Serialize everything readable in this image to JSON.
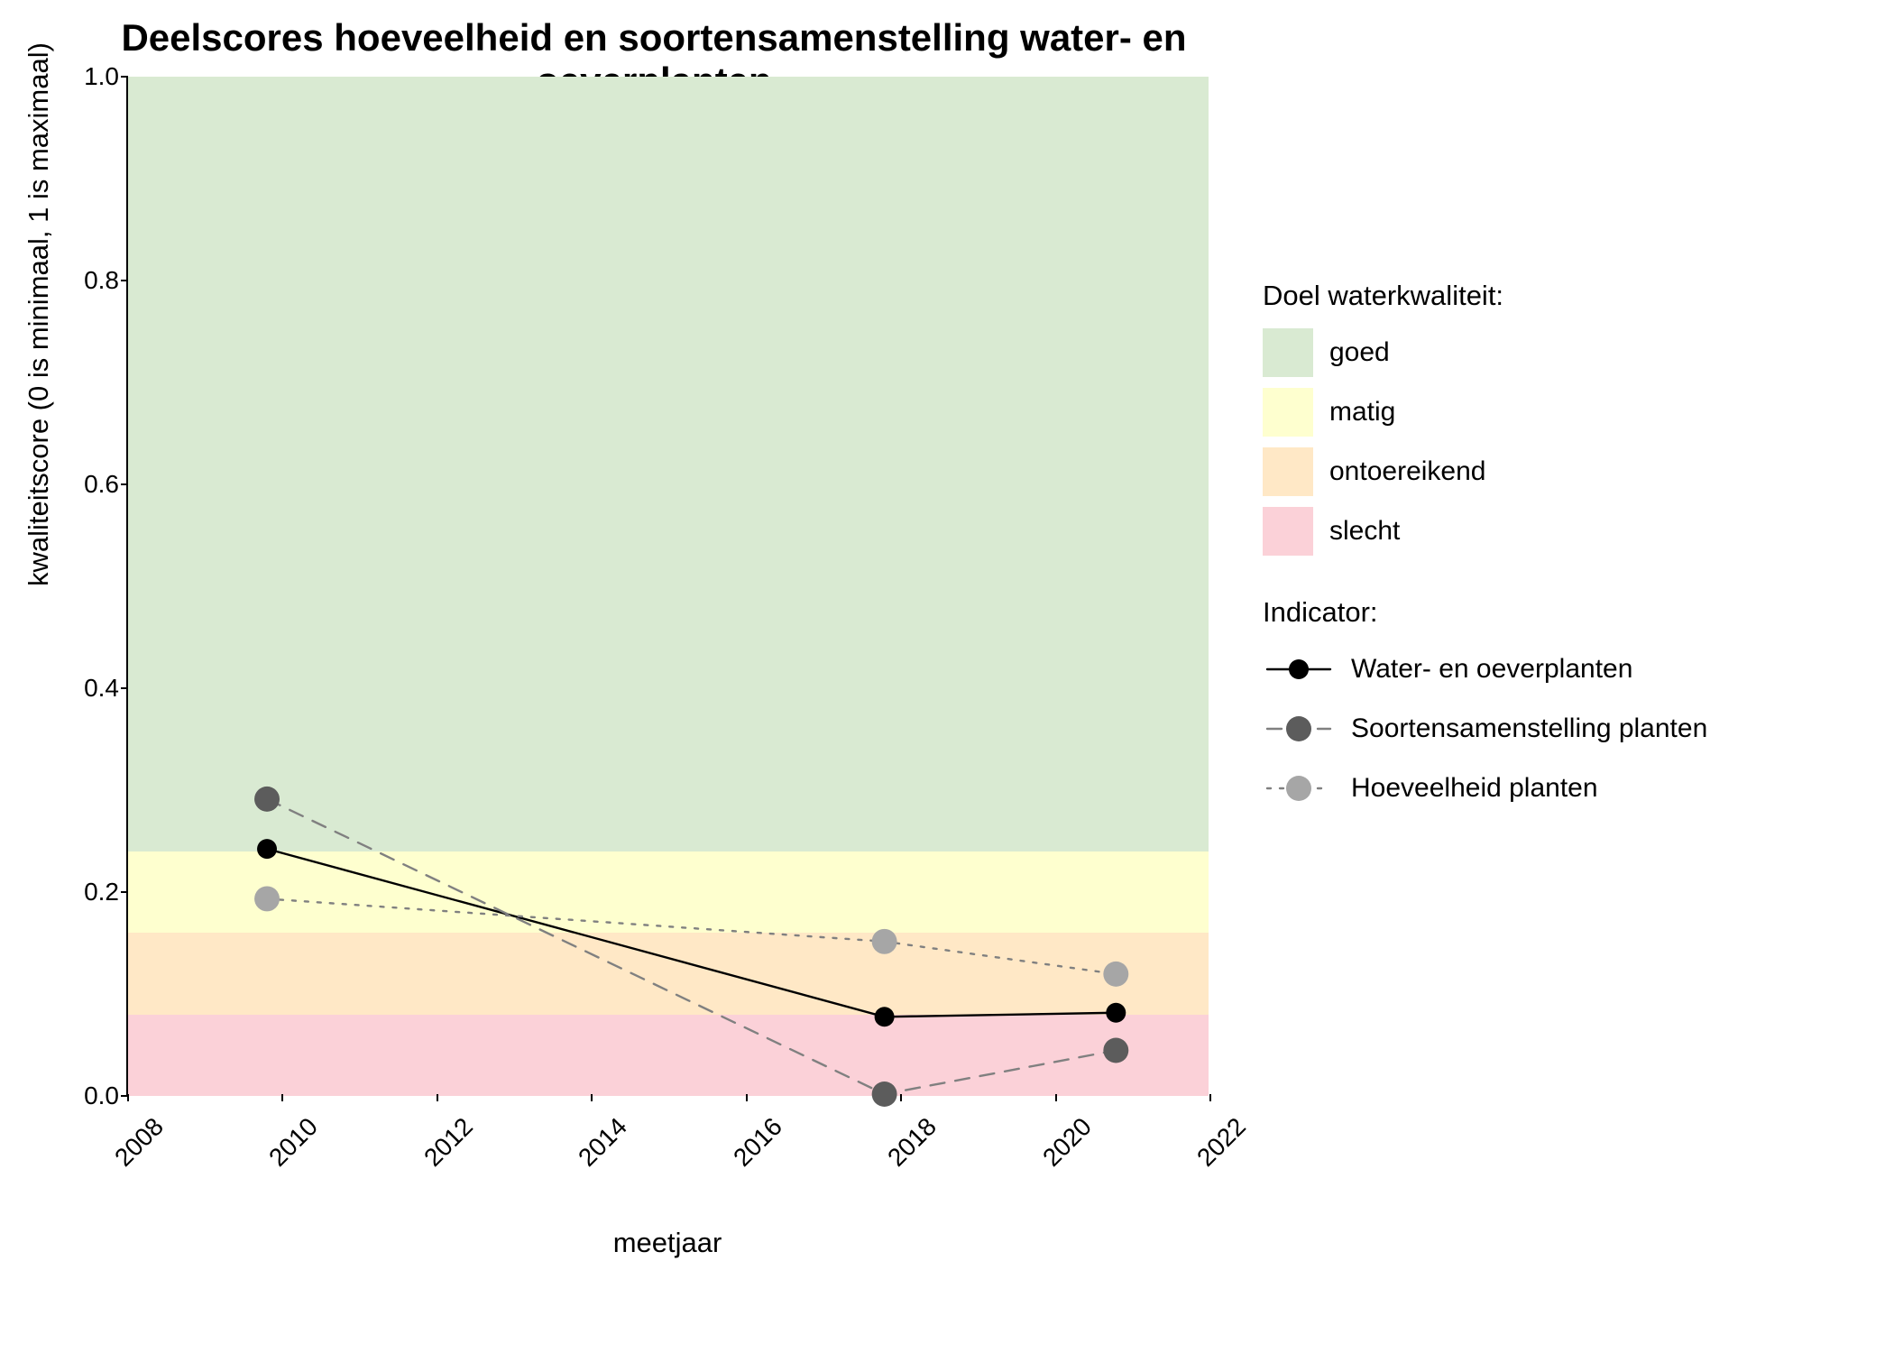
{
  "chart": {
    "type": "line",
    "title": "Deelscores hoeveelheid en soortensamenstelling water- en oeverplanten",
    "title_fontsize": 42,
    "xlabel": "meetjaar",
    "ylabel": "kwaliteitscore (0 is minimaal, 1 is maximaal)",
    "label_fontsize": 31,
    "tick_fontsize": 28,
    "background_color": "#ffffff",
    "xlim": [
      2008,
      2022
    ],
    "ylim": [
      0,
      1.0
    ],
    "xticks": [
      2008,
      2010,
      2012,
      2014,
      2016,
      2018,
      2020,
      2022
    ],
    "yticks": [
      0.0,
      0.2,
      0.4,
      0.6,
      0.8,
      1.0
    ],
    "xtick_rotation": -45,
    "bands": [
      {
        "name": "goed",
        "from": 0.24,
        "to": 1.0,
        "color": "#d9ead2"
      },
      {
        "name": "matig",
        "from": 0.16,
        "to": 0.24,
        "color": "#feffcf"
      },
      {
        "name": "ontoereikend",
        "from": 0.08,
        "to": 0.16,
        "color": "#ffe8c6"
      },
      {
        "name": "slecht",
        "from": 0.0,
        "to": 0.08,
        "color": "#fbd1d8"
      }
    ],
    "series": [
      {
        "name": "Water- en oeverplanten",
        "x": [
          2009.8,
          2017.8,
          2020.8
        ],
        "y": [
          0.241,
          0.076,
          0.08
        ],
        "color": "#000000",
        "marker_color": "#000000",
        "line_style": "solid",
        "line_width": 2.4,
        "marker_size": 11
      },
      {
        "name": "Soortensamenstelling planten",
        "x": [
          2009.8,
          2017.8,
          2020.8
        ],
        "y": [
          0.29,
          0.0,
          0.043
        ],
        "color": "#808080",
        "marker_color": "#5c5c5c",
        "line_style": "dashed",
        "line_width": 2.4,
        "marker_size": 14
      },
      {
        "name": "Hoeveelheid planten",
        "x": [
          2009.8,
          2017.8,
          2020.8
        ],
        "y": [
          0.192,
          0.15,
          0.118
        ],
        "color": "#808080",
        "marker_color": "#a6a6a6",
        "line_style": "dotted",
        "line_width": 2.4,
        "marker_size": 14
      }
    ],
    "legend_quality_title": "Doel waterkwaliteit:",
    "legend_indicator_title": "Indicator:",
    "legend_fontsize": 30
  }
}
